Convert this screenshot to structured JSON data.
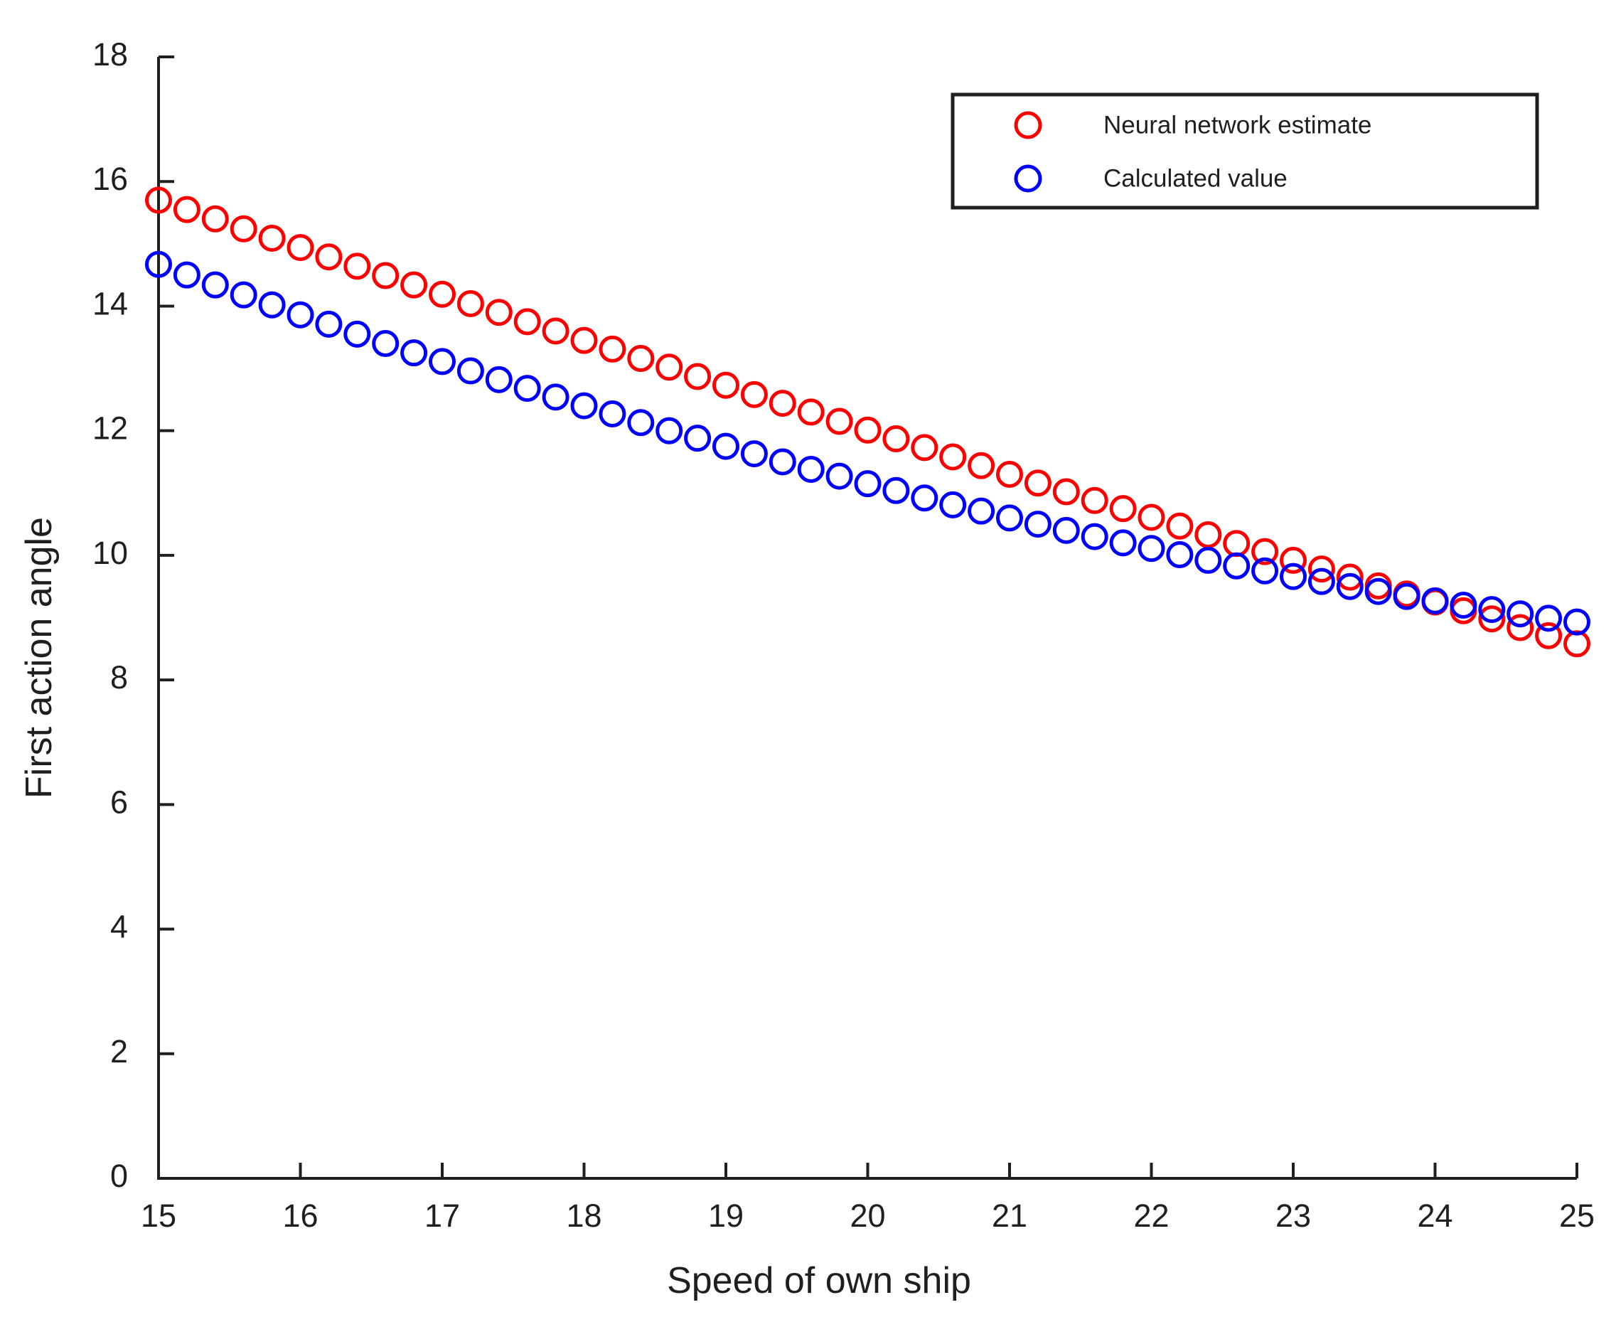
{
  "chart_data": {
    "type": "scatter",
    "title": "",
    "xlabel": "Speed of own ship",
    "ylabel": "First action angle",
    "xlim": [
      15,
      25
    ],
    "ylim": [
      0,
      18
    ],
    "x_ticks": [
      15,
      16,
      17,
      18,
      19,
      20,
      21,
      22,
      23,
      24,
      25
    ],
    "y_ticks": [
      0,
      2,
      4,
      6,
      8,
      10,
      12,
      14,
      16,
      18
    ],
    "grid": false,
    "legend_position": "top-right",
    "marker": "open-circle",
    "x": [
      15.0,
      15.2,
      15.4,
      15.6,
      15.8,
      16.0,
      16.2,
      16.4,
      16.6,
      16.8,
      17.0,
      17.2,
      17.4,
      17.6,
      17.8,
      18.0,
      18.2,
      18.4,
      18.6,
      18.8,
      19.0,
      19.2,
      19.4,
      19.6,
      19.8,
      20.0,
      20.2,
      20.4,
      20.6,
      20.8,
      21.0,
      21.2,
      21.4,
      21.6,
      21.8,
      22.0,
      22.2,
      22.4,
      22.6,
      22.8,
      23.0,
      23.2,
      23.4,
      23.6,
      23.8,
      24.0,
      24.2,
      24.4,
      24.6,
      24.8,
      25.0
    ],
    "series": [
      {
        "name": "Neural network estimate",
        "color": "#ff0000",
        "values": [
          15.7,
          15.55,
          15.4,
          15.24,
          15.09,
          14.94,
          14.79,
          14.64,
          14.49,
          14.34,
          14.19,
          14.04,
          13.9,
          13.75,
          13.6,
          13.45,
          13.31,
          13.16,
          13.02,
          12.87,
          12.73,
          12.58,
          12.44,
          12.3,
          12.15,
          12.01,
          11.87,
          11.73,
          11.58,
          11.44,
          11.3,
          11.16,
          11.02,
          10.88,
          10.75,
          10.61,
          10.47,
          10.33,
          10.19,
          10.06,
          9.92,
          9.78,
          9.65,
          9.51,
          9.38,
          9.25,
          9.11,
          8.98,
          8.84,
          8.71,
          8.58
        ]
      },
      {
        "name": "Calculated value",
        "color": "#0000ff",
        "values": [
          14.67,
          14.5,
          14.34,
          14.18,
          14.02,
          13.86,
          13.71,
          13.55,
          13.4,
          13.25,
          13.11,
          12.96,
          12.82,
          12.68,
          12.54,
          12.4,
          12.27,
          12.13,
          12.0,
          11.88,
          11.75,
          11.63,
          11.5,
          11.38,
          11.27,
          11.15,
          11.04,
          10.92,
          10.81,
          10.71,
          10.6,
          10.5,
          10.4,
          10.3,
          10.2,
          10.11,
          10.01,
          9.92,
          9.83,
          9.75,
          9.66,
          9.58,
          9.5,
          9.42,
          9.34,
          9.27,
          9.2,
          9.13,
          9.06,
          8.99,
          8.93
        ]
      }
    ]
  },
  "legend": {
    "items": [
      {
        "label": "Neural network estimate",
        "marker": "open-circle-icon",
        "color": "#ff0000"
      },
      {
        "label": "Calculated value",
        "marker": "open-circle-icon",
        "color": "#0000ff"
      }
    ]
  },
  "style": {
    "axis_color": "#1f1f1f",
    "background": "#ffffff"
  }
}
